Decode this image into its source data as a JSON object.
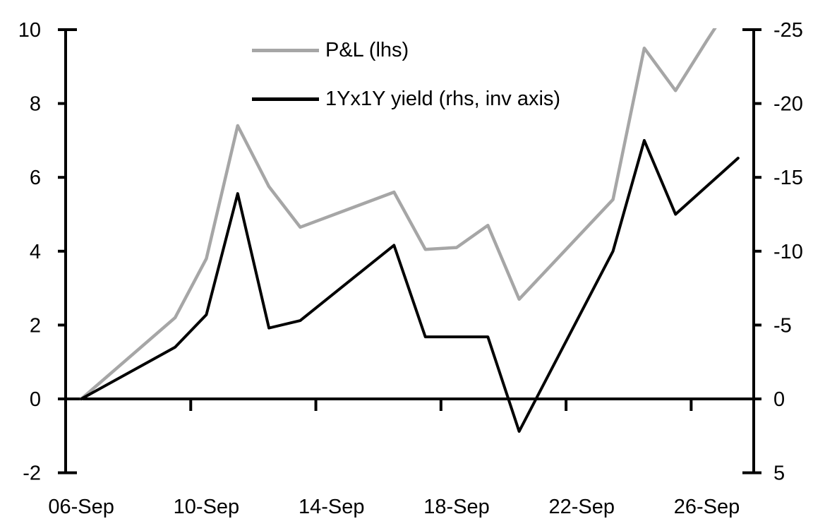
{
  "chart_data": {
    "type": "line",
    "title": "",
    "xlabel": "",
    "ylabel_left": "",
    "ylabel_right": "",
    "grid": false,
    "legend_position": "top-center-inside",
    "x": {
      "dates": [
        "06-Sep",
        "09-Sep",
        "10-Sep",
        "11-Sep",
        "12-Sep",
        "13-Sep",
        "16-Sep",
        "17-Sep",
        "18-Sep",
        "19-Sep",
        "20-Sep",
        "23-Sep",
        "24-Sep",
        "25-Sep",
        "26-Sep",
        "27-Sep"
      ],
      "day_offsets": [
        0,
        3,
        4,
        5,
        6,
        7,
        10,
        11,
        12,
        13,
        14,
        17,
        18,
        19,
        20,
        21
      ],
      "axis_span_days": 22,
      "tick_labels": [
        "06-Sep",
        "10-Sep",
        "14-Sep",
        "18-Sep",
        "22-Sep",
        "26-Sep"
      ],
      "tick_label_day_offsets": [
        0,
        4,
        8,
        12,
        16,
        20
      ]
    },
    "series": [
      {
        "name": "P&L (lhs)",
        "axis": "left",
        "color": "#a6a6a6",
        "stroke_width": 4.5,
        "values": [
          0.0,
          2.2,
          3.8,
          7.4,
          5.75,
          4.65,
          5.6,
          4.05,
          4.1,
          4.7,
          2.7,
          5.4,
          9.5,
          8.35,
          9.7,
          11.0
        ],
        "note": "final point rises above left-axis max and is clipped at 10"
      },
      {
        "name": "1Yx1Y yield (rhs, inv axis)",
        "axis": "right",
        "color": "#000000",
        "stroke_width": 4,
        "values": [
          0.0,
          -3.5,
          -5.7,
          -13.9,
          -4.8,
          -5.3,
          -10.4,
          -4.2,
          -4.2,
          -4.2,
          2.2,
          -10.0,
          -17.5,
          -12.5,
          -14.4,
          -16.3
        ]
      }
    ],
    "left_axis": {
      "min": -2,
      "max": 10,
      "ticks": [
        10,
        8,
        6,
        4,
        2,
        0,
        -2
      ]
    },
    "right_axis": {
      "top": -25,
      "bottom": 5,
      "inverted": true,
      "ticks": [
        -25,
        -20,
        -15,
        -10,
        -5,
        0,
        5
      ]
    }
  },
  "legend": {
    "pnl_label": "P&L (lhs)",
    "yield_label": "1Yx1Y yield (rhs, inv axis)"
  },
  "colors": {
    "pnl_line": "#a6a6a6",
    "yield_line": "#000000",
    "axis": "#000000",
    "background": "#ffffff"
  }
}
